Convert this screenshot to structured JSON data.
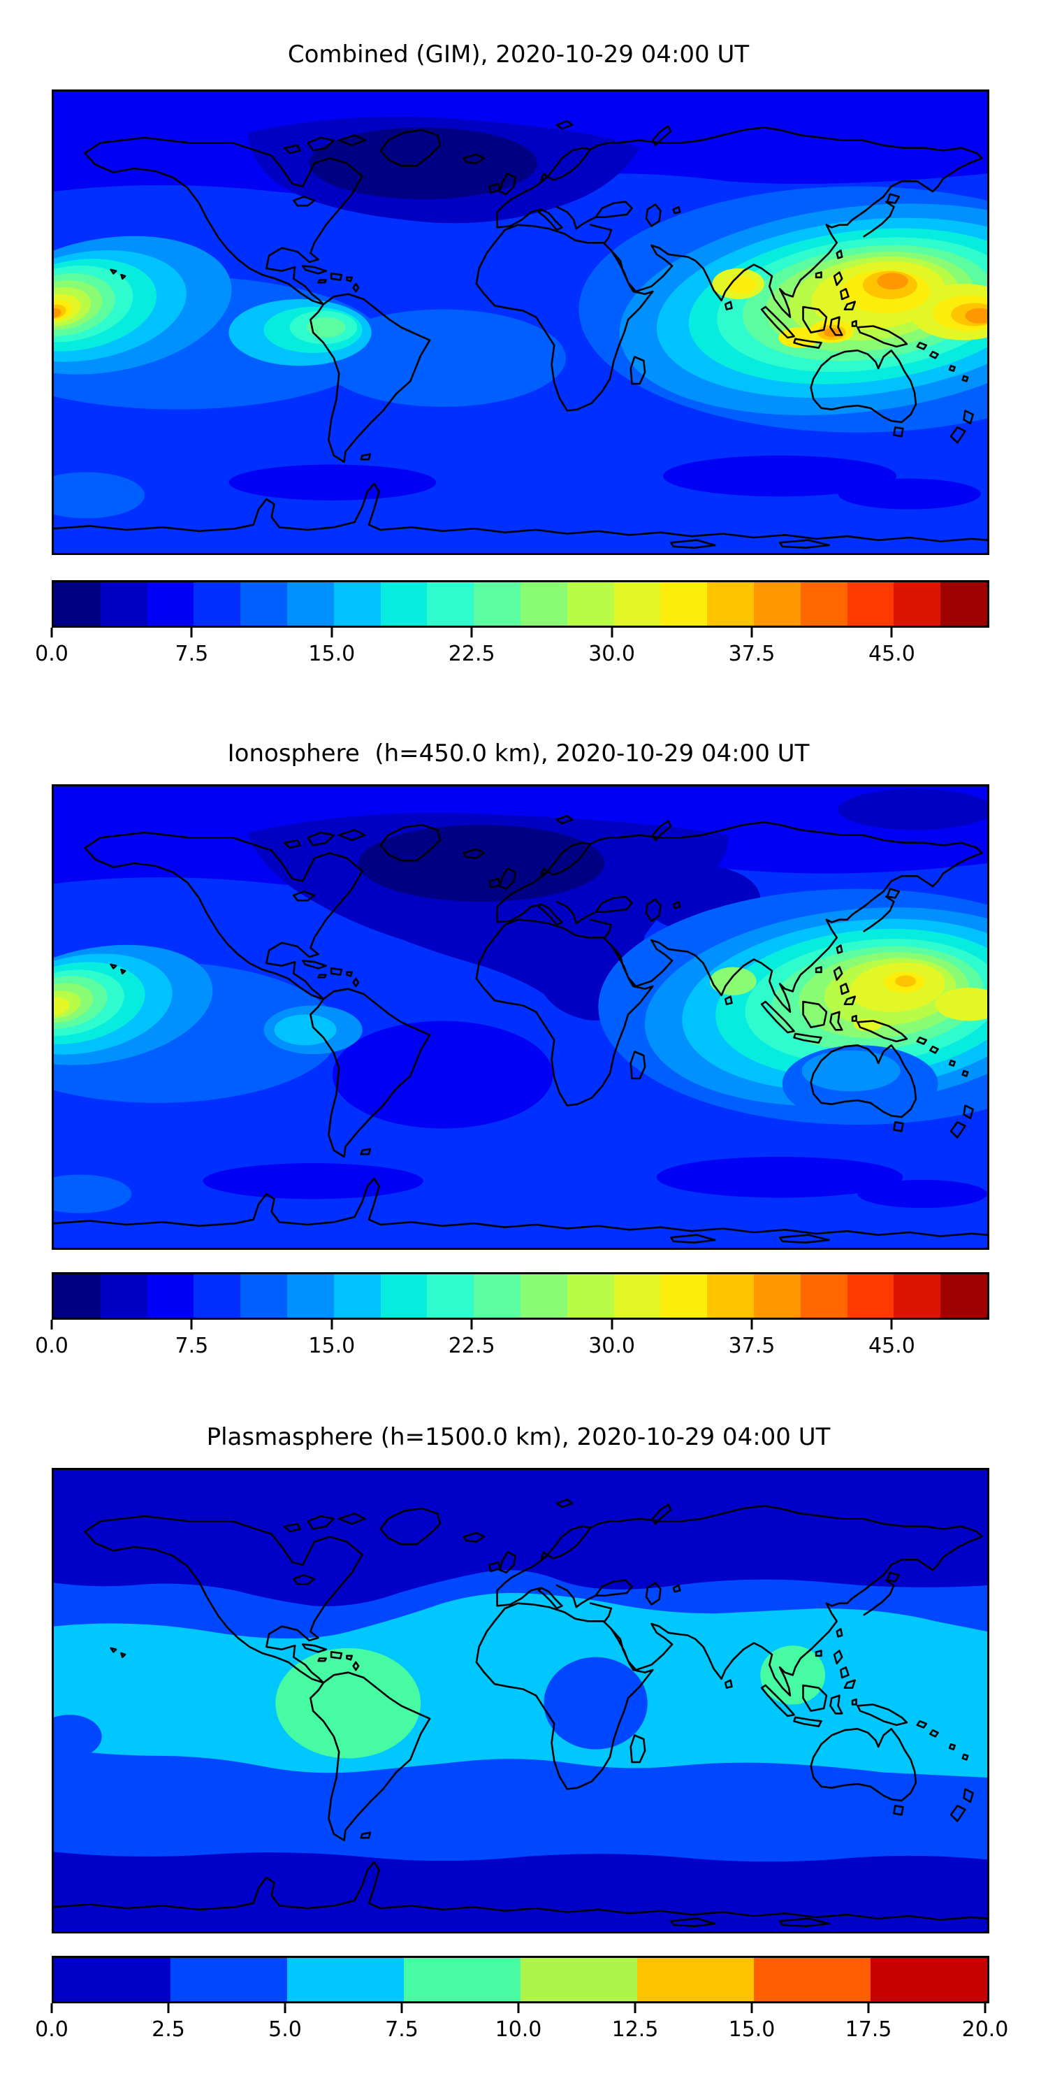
{
  "figure": {
    "kind": "stacked geographic contour maps (matplotlib-style)",
    "n_panels": 3,
    "timestamp": "2020-10-29 04:00 UT"
  },
  "colors": {
    "background": "#ffffff",
    "coastline": "#000000",
    "frame": "#000000",
    "jet20": [
      "#000085",
      "#0000c4",
      "#0000f5",
      "#0030ff",
      "#0060ff",
      "#0091ff",
      "#00c2ff",
      "#06ecdf",
      "#2ffcce",
      "#5cfca1",
      "#8afc74",
      "#b8fc47",
      "#e2f725",
      "#fcee0a",
      "#ffc400",
      "#ff9700",
      "#ff6800",
      "#ff3a00",
      "#dd1400",
      "#9e0000"
    ],
    "jet8": [
      "#0000c8",
      "#0048ff",
      "#00c8ff",
      "#46fba1",
      "#aef549",
      "#ffc400",
      "#ff5f00",
      "#c80000"
    ]
  },
  "panels": [
    {
      "id": "combined",
      "title": "Combined (GIM), 2020-10-29 04:00 UT",
      "colorbar": {
        "palette": "jet20",
        "n_segments": 20,
        "vmin": 0,
        "vmax": 50,
        "segment_step": 2.5,
        "tick_values": [
          0,
          7.5,
          15,
          22.5,
          30,
          37.5,
          45
        ],
        "tick_labels": [
          "0.0",
          "7.5",
          "15.0",
          "22.5",
          "30.0",
          "37.5",
          "45.0"
        ]
      }
    },
    {
      "id": "ionosphere",
      "title": "Ionosphere  (h=450.0 km), 2020-10-29 04:00 UT",
      "colorbar": {
        "palette": "jet20",
        "n_segments": 20,
        "vmin": 0,
        "vmax": 50,
        "segment_step": 2.5,
        "tick_values": [
          0,
          7.5,
          15,
          22.5,
          30,
          37.5,
          45
        ],
        "tick_labels": [
          "0.0",
          "7.5",
          "15.0",
          "22.5",
          "30.0",
          "37.5",
          "45.0"
        ]
      }
    },
    {
      "id": "plasmasphere",
      "title": "Plasmasphere (h=1500.0 km), 2020-10-29 04:00 UT",
      "colorbar": {
        "palette": "jet8",
        "n_segments": 8,
        "vmin": 0,
        "vmax": 20,
        "segment_step": 2.5,
        "tick_values": [
          0,
          2.5,
          5,
          7.5,
          10,
          12.5,
          15,
          17.5,
          20
        ],
        "tick_labels": [
          "0.0",
          "2.5",
          "5.0",
          "7.5",
          "10.0",
          "12.5",
          "15.0",
          "17.5",
          "20.0"
        ]
      }
    }
  ],
  "chart_data": [
    {
      "type": "heatmap",
      "title": "Combined (GIM), 2020-10-29 04:00 UT",
      "projection": "equirectangular",
      "x_range": [
        -180,
        180
      ],
      "y_range": [
        -90,
        90
      ],
      "colormap": "jet",
      "vmin": 0,
      "vmax": 50,
      "contour_interval": 2.5,
      "colorbar_ticks": [
        0.0,
        7.5,
        15.0,
        22.5,
        30.0,
        37.5,
        45.0
      ],
      "legend_position": "bottom horizontal colorbar",
      "grid": false,
      "features": [
        {
          "name": "west-Pacific / SE-Asia equatorial anomaly (main maximum)",
          "lon": 142,
          "lat": 17,
          "peak_value": 40
        },
        {
          "name": "secondary orange core near dateline",
          "lon": 178,
          "lat": 3,
          "peak_value": 40
        },
        {
          "name": "small orange core over Indonesia / New Guinea",
          "lon": 120,
          "lat": -4,
          "peak_value": 37.5
        },
        {
          "name": "yellow lobe over eastern India / Bay of Bengal",
          "lon": 84,
          "lat": 15,
          "peak_value": 35
        },
        {
          "name": "central-Pacific anomaly cut at map left edge",
          "lon": -178,
          "lat": 7,
          "peak_value": 40
        },
        {
          "name": "turquoise enhancement over northern South America",
          "lon": -72,
          "lat": -6,
          "peak_value": 22.5
        },
        {
          "name": "minimum over Canada / Greenland / North Atlantic",
          "lon": -60,
          "lat": 60,
          "value": 2.5
        },
        {
          "name": "typical night-side ocean background",
          "value": 7.5
        },
        {
          "name": "southern high-latitude band",
          "lat": -65,
          "value": 5
        }
      ]
    },
    {
      "type": "heatmap",
      "title": "Ionosphere  (h=450.0 km), 2020-10-29 04:00 UT",
      "projection": "equirectangular",
      "x_range": [
        -180,
        180
      ],
      "y_range": [
        -90,
        90
      ],
      "colormap": "jet",
      "vmin": 0,
      "vmax": 50,
      "contour_interval": 2.5,
      "colorbar_ticks": [
        0.0,
        7.5,
        15.0,
        22.5,
        30.0,
        37.5,
        45.0
      ],
      "legend_position": "bottom horizontal colorbar",
      "grid": false,
      "features": [
        {
          "name": "west-Pacific / SE-Asia anomaly (gold core east of Philippines)",
          "lon": 144,
          "lat": 14,
          "peak_value": 35
        },
        {
          "name": "yellow patch near New Guinea",
          "lon": 134,
          "lat": -3,
          "peak_value": 32.5
        },
        {
          "name": "central-Pacific anomaly cut at map left edge",
          "lon": -178,
          "lat": 8,
          "peak_value": 32.5
        },
        {
          "name": "deep minimum over Europe / North Atlantic / Sahara",
          "lon": 0,
          "lat": 35,
          "value": 2.5
        },
        {
          "name": "darkest patch over Scandinavia / North Atlantic",
          "lon": -15,
          "lat": 60,
          "value": 1.5
        },
        {
          "name": "typical ocean background",
          "value": 7.5
        }
      ]
    },
    {
      "type": "heatmap",
      "title": "Plasmasphere (h=1500.0 km), 2020-10-29 04:00 UT",
      "projection": "equirectangular",
      "x_range": [
        -180,
        180
      ],
      "y_range": [
        -90,
        90
      ],
      "colormap": "jet",
      "vmin": 0,
      "vmax": 20,
      "contour_interval": 2.5,
      "colorbar_ticks": [
        0.0,
        2.5,
        5.0,
        7.5,
        10.0,
        12.5,
        15.0,
        17.5,
        20.0
      ],
      "legend_position": "bottom horizontal colorbar",
      "grid": false,
      "features": [
        {
          "name": "green maximum over northern South America",
          "lon": -66,
          "lat": -1,
          "peak_value": 10
        },
        {
          "name": "green patch over Indochina",
          "lon": 105,
          "lat": 10,
          "peak_value": 10
        },
        {
          "name": "cyan equatorial/tropical belt",
          "lat_span": [
            -20,
            30
          ],
          "value": 7.5
        },
        {
          "name": "blue notch over equatorial Africa",
          "lon": 28,
          "lat": -2,
          "value": 5
        },
        {
          "name": "northern high-latitude navy band",
          "lat_above": 47,
          "value": 2.5
        },
        {
          "name": "southern high-latitude navy band",
          "lat_below": -55,
          "value": 2.5
        },
        {
          "name": "mid-latitude background",
          "value": 5
        }
      ]
    }
  ]
}
